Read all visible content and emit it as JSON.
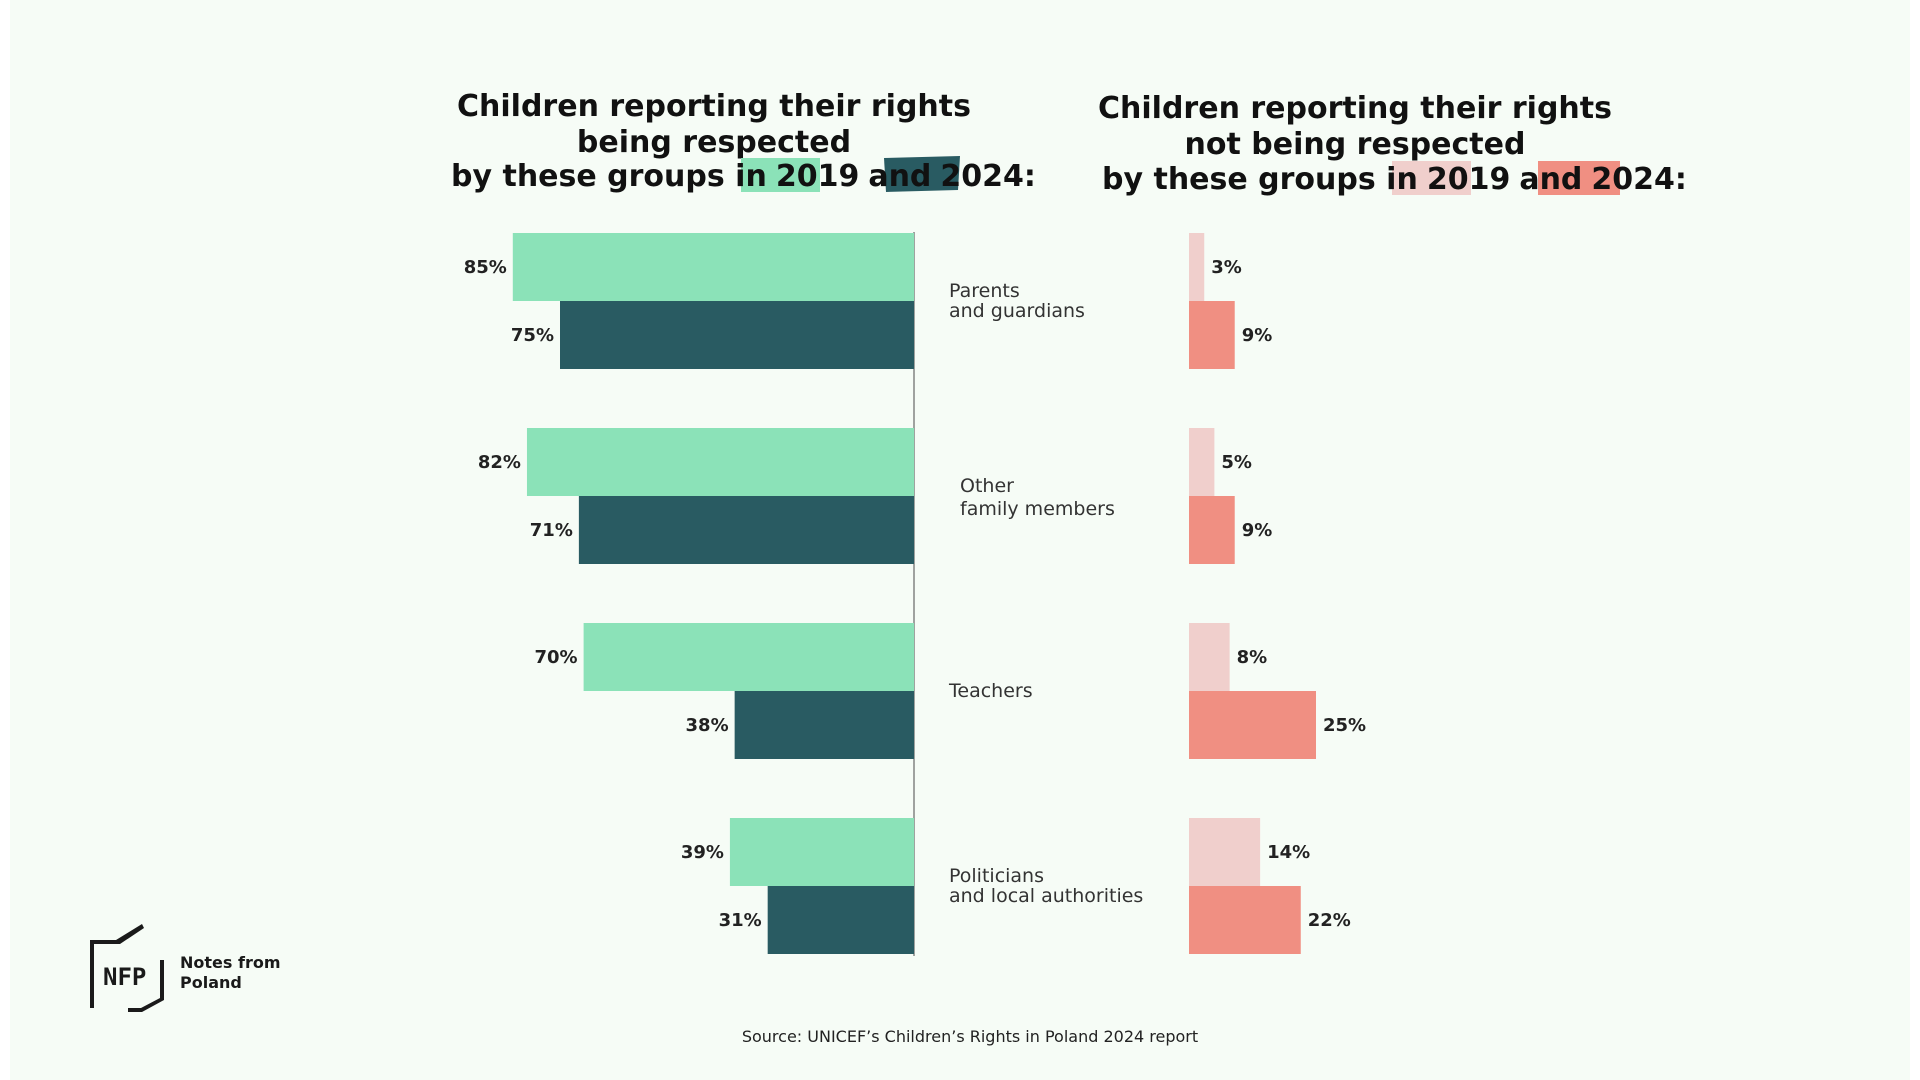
{
  "colors": {
    "respected_2019": "#8be2b8",
    "respected_2024": "#295b62",
    "not_respected_2019": "#f0cfcc",
    "not_respected_2024": "#f08f82",
    "text": "#111111",
    "axis": "#555555"
  },
  "chart_data": [
    {
      "type": "bar",
      "orientation": "horizontal",
      "title_lines": [
        "Children reporting their rights",
        "being respected",
        "by these groups in"
      ],
      "title_connector": "and",
      "title_years": [
        "2019",
        "2024:"
      ],
      "categories": [
        "Parents and guardians",
        "Other family members",
        "Teachers",
        "Politicians and local authorities"
      ],
      "series": [
        {
          "name": "2019",
          "values": [
            85,
            82,
            70,
            39
          ]
        },
        {
          "name": "2024",
          "values": [
            75,
            71,
            38,
            31
          ]
        }
      ],
      "value_labels_2019": [
        "85%",
        "82%",
        "70%",
        "39%"
      ],
      "value_labels_2024": [
        "75%",
        "71%",
        "38%",
        "31%"
      ],
      "direction": "right-to-left"
    },
    {
      "type": "bar",
      "orientation": "horizontal",
      "title_lines": [
        "Children reporting their rights",
        "not being respected",
        "by these groups in"
      ],
      "title_connector": "and",
      "title_years": [
        "2019",
        "2024:"
      ],
      "categories": [
        "Parents and guardians",
        "Other family members",
        "Teachers",
        "Politicians and local authorities"
      ],
      "series": [
        {
          "name": "2019",
          "values": [
            3,
            5,
            8,
            14
          ]
        },
        {
          "name": "2024",
          "values": [
            9,
            9,
            25,
            22
          ]
        }
      ],
      "value_labels_2019": [
        "3%",
        "5%",
        "8%",
        "14%"
      ],
      "value_labels_2024": [
        "9%",
        "9%",
        "25%",
        "22%"
      ],
      "direction": "left-to-right"
    }
  ],
  "category_labels": [
    [
      "Parents",
      "and guardians"
    ],
    [
      "Other",
      "family members"
    ],
    [
      "Teachers"
    ],
    [
      "Politicians",
      "and local authorities"
    ]
  ],
  "source": "Source: UNICEF’s Children’s Rights in Poland 2024 report",
  "logo": {
    "mark": "NFP",
    "line1": "Notes from",
    "line2": "Poland"
  }
}
